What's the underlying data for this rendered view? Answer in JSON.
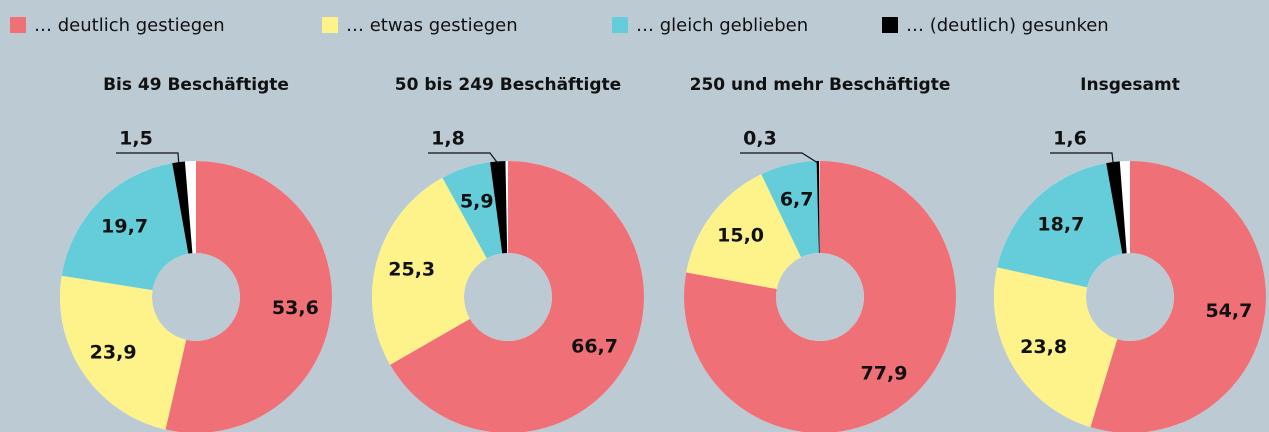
{
  "legend": {
    "items": [
      {
        "name": "… deutlich gestiegen",
        "color": "#f07078"
      },
      {
        "name": "… etwas gestiegen",
        "color": "#fdf38a"
      },
      {
        "name": "… gleich geblieben",
        "color": "#65ccda"
      },
      {
        "name": "… (deutlich) gesunken",
        "color": "#000000"
      }
    ]
  },
  "chart_data": [
    {
      "type": "pie",
      "title": "Bis 49 Beschäftigte",
      "values": [
        53.6,
        23.9,
        19.7,
        1.5
      ],
      "value_labels": [
        "53,6",
        "23,9",
        "19,7",
        "1,5"
      ]
    },
    {
      "type": "pie",
      "title": "50 bis 249 Beschäftigte",
      "values": [
        66.7,
        25.3,
        5.9,
        1.8
      ],
      "value_labels": [
        "66,7",
        "25,3",
        "5,9",
        "1,8"
      ]
    },
    {
      "type": "pie",
      "title": "250 und mehr Beschäftigte",
      "values": [
        77.9,
        15.0,
        6.7,
        0.3
      ],
      "value_labels": [
        "77,9",
        "15,0",
        "6,7",
        "0,3"
      ]
    },
    {
      "type": "pie",
      "title": "Insgesamt",
      "values": [
        54.7,
        23.8,
        18.7,
        1.6
      ],
      "value_labels": [
        "54,7",
        "23,8",
        "18,7",
        "1,6"
      ]
    }
  ]
}
